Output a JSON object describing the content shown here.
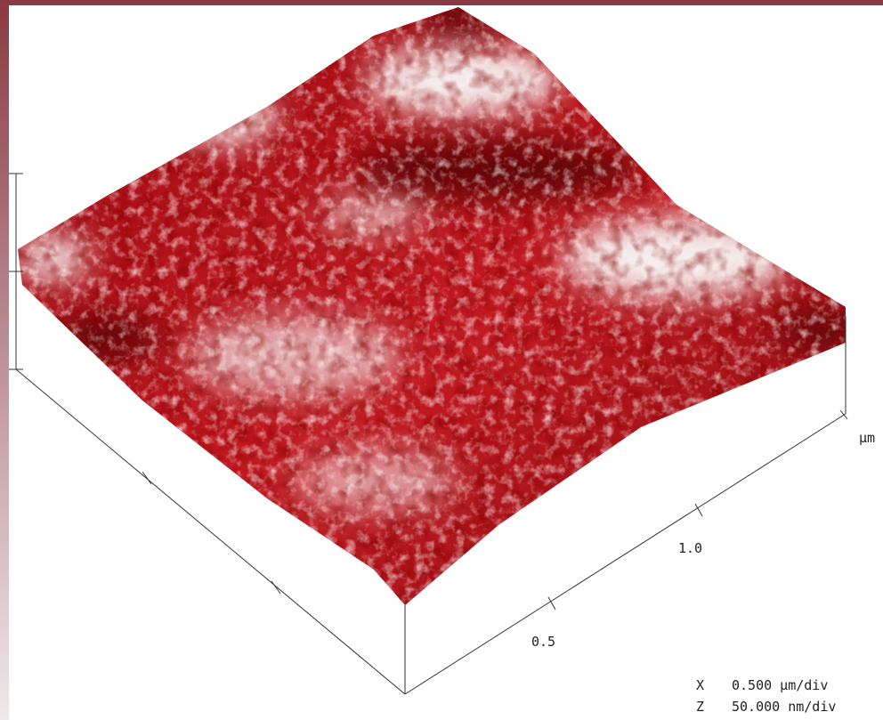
{
  "axis": {
    "unit": "µm",
    "tick_labels": [
      "0.5",
      "1.0"
    ]
  },
  "scale": [
    {
      "axis": "X",
      "value": "0.500 µm/div"
    },
    {
      "axis": "Z",
      "value": "50.000 nm/div"
    }
  ]
}
